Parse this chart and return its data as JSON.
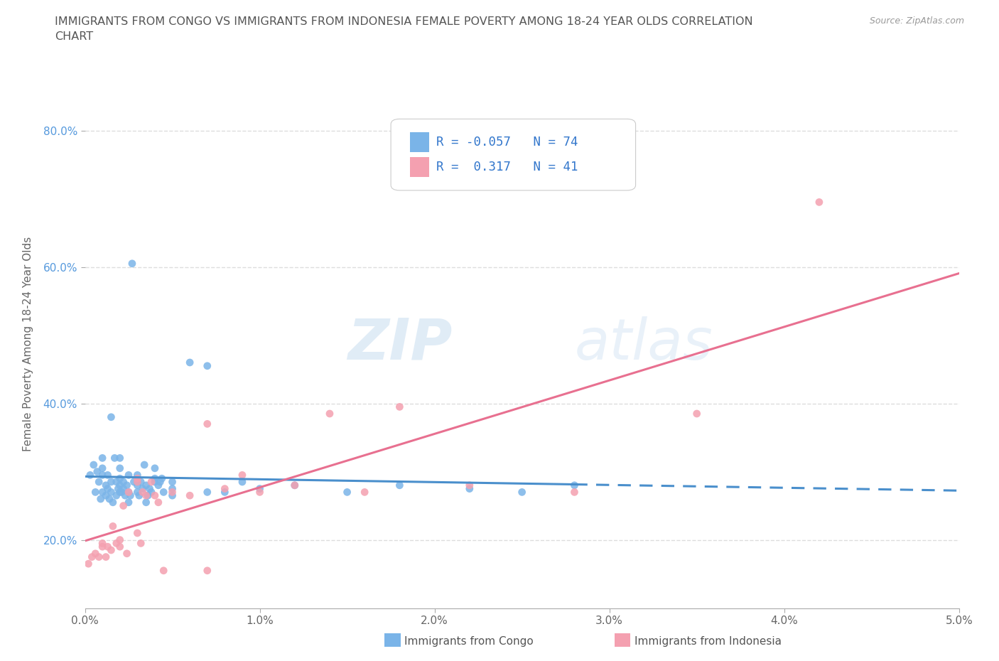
{
  "title": "IMMIGRANTS FROM CONGO VS IMMIGRANTS FROM INDONESIA FEMALE POVERTY AMONG 18-24 YEAR OLDS CORRELATION\nCHART",
  "source_text": "Source: ZipAtlas.com",
  "ylabel": "Female Poverty Among 18-24 Year Olds",
  "xlim": [
    0.0,
    0.05
  ],
  "ylim": [
    0.1,
    0.875
  ],
  "xticks": [
    0.0,
    0.01,
    0.02,
    0.03,
    0.04,
    0.05
  ],
  "xticklabels": [
    "0.0%",
    "1.0%",
    "2.0%",
    "3.0%",
    "4.0%",
    "5.0%"
  ],
  "yticks": [
    0.2,
    0.4,
    0.6,
    0.8
  ],
  "yticklabels": [
    "20.0%",
    "40.0%",
    "60.0%",
    "80.0%"
  ],
  "color_congo": "#7ab4e8",
  "color_indonesia": "#f4a0b0",
  "trendline_congo_solid": "#4a8fcc",
  "trendline_indonesia_solid": "#e87090",
  "R_congo": -0.057,
  "N_congo": 74,
  "R_indonesia": 0.317,
  "N_indonesia": 41,
  "watermark_zip": "ZIP",
  "watermark_atlas": "atlas",
  "background_color": "#ffffff",
  "grid_color": "#dddddd",
  "congo_x": [
    0.0003,
    0.0005,
    0.0006,
    0.0007,
    0.0008,
    0.0009,
    0.001,
    0.001,
    0.001,
    0.001,
    0.0012,
    0.0012,
    0.0013,
    0.0013,
    0.0014,
    0.0015,
    0.0015,
    0.0015,
    0.0016,
    0.0017,
    0.0018,
    0.0018,
    0.0019,
    0.002,
    0.002,
    0.002,
    0.002,
    0.002,
    0.0021,
    0.0022,
    0.0022,
    0.0023,
    0.0024,
    0.0025,
    0.0025,
    0.0025,
    0.0026,
    0.0027,
    0.0028,
    0.003,
    0.003,
    0.003,
    0.003,
    0.0031,
    0.0032,
    0.0033,
    0.0034,
    0.0035,
    0.0035,
    0.0036,
    0.0037,
    0.0038,
    0.004,
    0.004,
    0.004,
    0.0042,
    0.0043,
    0.0044,
    0.0045,
    0.005,
    0.005,
    0.005,
    0.006,
    0.007,
    0.007,
    0.008,
    0.009,
    0.01,
    0.012,
    0.015,
    0.018,
    0.022,
    0.025,
    0.028
  ],
  "congo_y": [
    0.295,
    0.31,
    0.27,
    0.3,
    0.285,
    0.26,
    0.295,
    0.305,
    0.32,
    0.27,
    0.265,
    0.28,
    0.275,
    0.295,
    0.26,
    0.27,
    0.285,
    0.38,
    0.255,
    0.32,
    0.265,
    0.285,
    0.275,
    0.27,
    0.28,
    0.29,
    0.305,
    0.32,
    0.27,
    0.275,
    0.285,
    0.265,
    0.28,
    0.255,
    0.27,
    0.295,
    0.265,
    0.605,
    0.285,
    0.28,
    0.285,
    0.295,
    0.27,
    0.265,
    0.285,
    0.275,
    0.31,
    0.255,
    0.28,
    0.265,
    0.275,
    0.27,
    0.285,
    0.29,
    0.305,
    0.28,
    0.285,
    0.29,
    0.27,
    0.265,
    0.275,
    0.285,
    0.46,
    0.27,
    0.455,
    0.27,
    0.285,
    0.275,
    0.28,
    0.27,
    0.28,
    0.275,
    0.27,
    0.28
  ],
  "indonesia_x": [
    0.0002,
    0.0004,
    0.0006,
    0.0008,
    0.001,
    0.001,
    0.0012,
    0.0013,
    0.0015,
    0.0016,
    0.0018,
    0.002,
    0.002,
    0.0022,
    0.0024,
    0.0025,
    0.003,
    0.003,
    0.003,
    0.0032,
    0.0033,
    0.0035,
    0.0038,
    0.004,
    0.0042,
    0.0045,
    0.005,
    0.006,
    0.007,
    0.007,
    0.008,
    0.009,
    0.01,
    0.012,
    0.014,
    0.016,
    0.018,
    0.022,
    0.028,
    0.035,
    0.042
  ],
  "indonesia_y": [
    0.165,
    0.175,
    0.18,
    0.175,
    0.19,
    0.195,
    0.175,
    0.19,
    0.185,
    0.22,
    0.195,
    0.19,
    0.2,
    0.25,
    0.18,
    0.27,
    0.285,
    0.29,
    0.21,
    0.195,
    0.27,
    0.265,
    0.285,
    0.265,
    0.255,
    0.155,
    0.27,
    0.265,
    0.155,
    0.37,
    0.275,
    0.295,
    0.27,
    0.28,
    0.385,
    0.27,
    0.395,
    0.28,
    0.27,
    0.385,
    0.695
  ]
}
